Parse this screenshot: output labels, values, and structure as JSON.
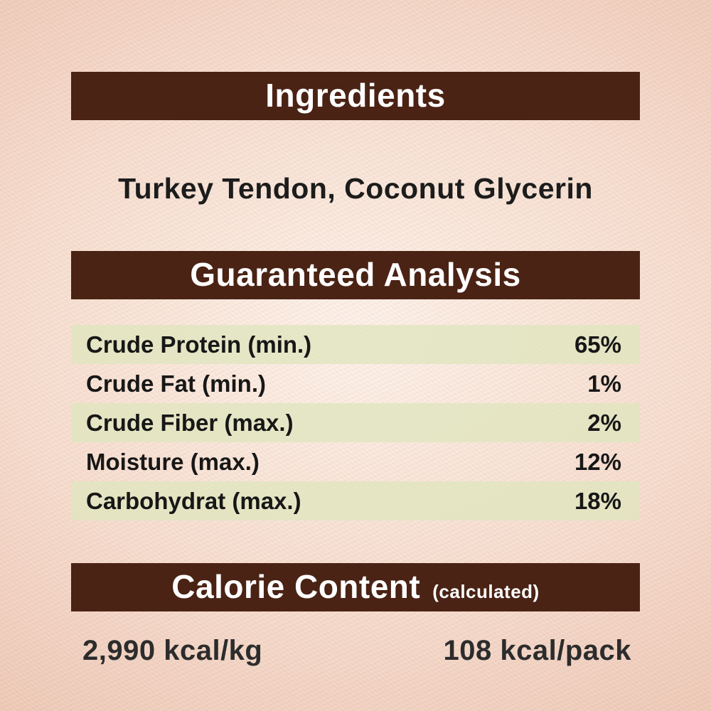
{
  "ingredients": {
    "title": "Ingredients",
    "list": "Turkey Tendon, Coconut Glycerin"
  },
  "guaranteed_analysis": {
    "title": "Guaranteed Analysis",
    "rows": [
      {
        "name": "Crude Protein (min.)",
        "value": "65%"
      },
      {
        "name": "Crude Fat (min.)",
        "value": "1%"
      },
      {
        "name": "Crude Fiber (max.)",
        "value": "2%"
      },
      {
        "name": "Moisture (max.)",
        "value": "12%"
      },
      {
        "name": "Carbohydrat (max.)",
        "value": "18%"
      }
    ]
  },
  "calorie_content": {
    "title": "Calorie Content",
    "subtitle": "(calculated)",
    "per_kg": "2,990 kcal/kg",
    "per_pack": "108 kcal/pack"
  },
  "colors": {
    "banner_brown": "#4a2315",
    "banner_text": "#ffffff",
    "background_peach": "#eec8b6",
    "row_highlight_green": "#e4e8c9",
    "text_dark": "#1c1c1c"
  }
}
